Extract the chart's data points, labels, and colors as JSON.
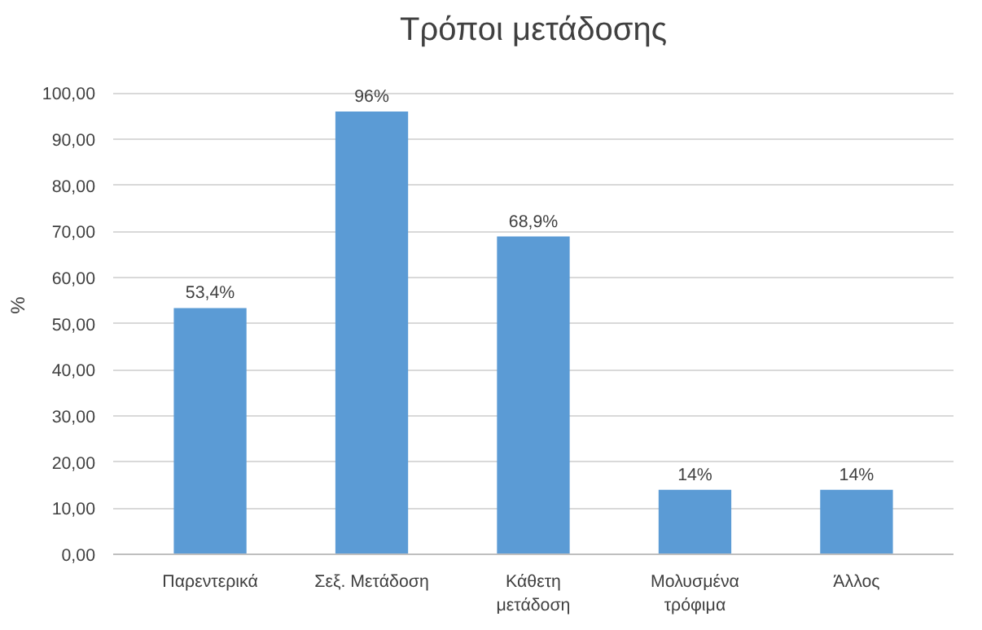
{
  "chart_data": {
    "type": "bar",
    "title": "Τρόποι μετάδοσης",
    "ylabel": "%",
    "categories": [
      "Παρεντερικά",
      "Σεξ. Μετάδοση",
      "Κάθετη μετάδοση",
      "Μολυσμένα τρόφιμα",
      "Άλλος"
    ],
    "values": [
      53.4,
      96,
      68.9,
      14,
      14
    ],
    "value_labels": [
      "53,4%",
      "96%",
      "68,9%",
      "14%",
      "14%"
    ],
    "color": "#5b9bd5",
    "ylim": [
      0,
      100
    ],
    "yticks": [
      {
        "value": 0,
        "label": "0,00"
      },
      {
        "value": 10,
        "label": "10,00"
      },
      {
        "value": 20,
        "label": "20,00"
      },
      {
        "value": 30,
        "label": "30,00"
      },
      {
        "value": 40,
        "label": "40,00"
      },
      {
        "value": 50,
        "label": "50,00"
      },
      {
        "value": 60,
        "label": "60,00"
      },
      {
        "value": 70,
        "label": "70,00"
      },
      {
        "value": 80,
        "label": "80,00"
      },
      {
        "value": 90,
        "label": "90,00"
      },
      {
        "value": 100,
        "label": "100,00"
      }
    ],
    "grid": "y"
  }
}
